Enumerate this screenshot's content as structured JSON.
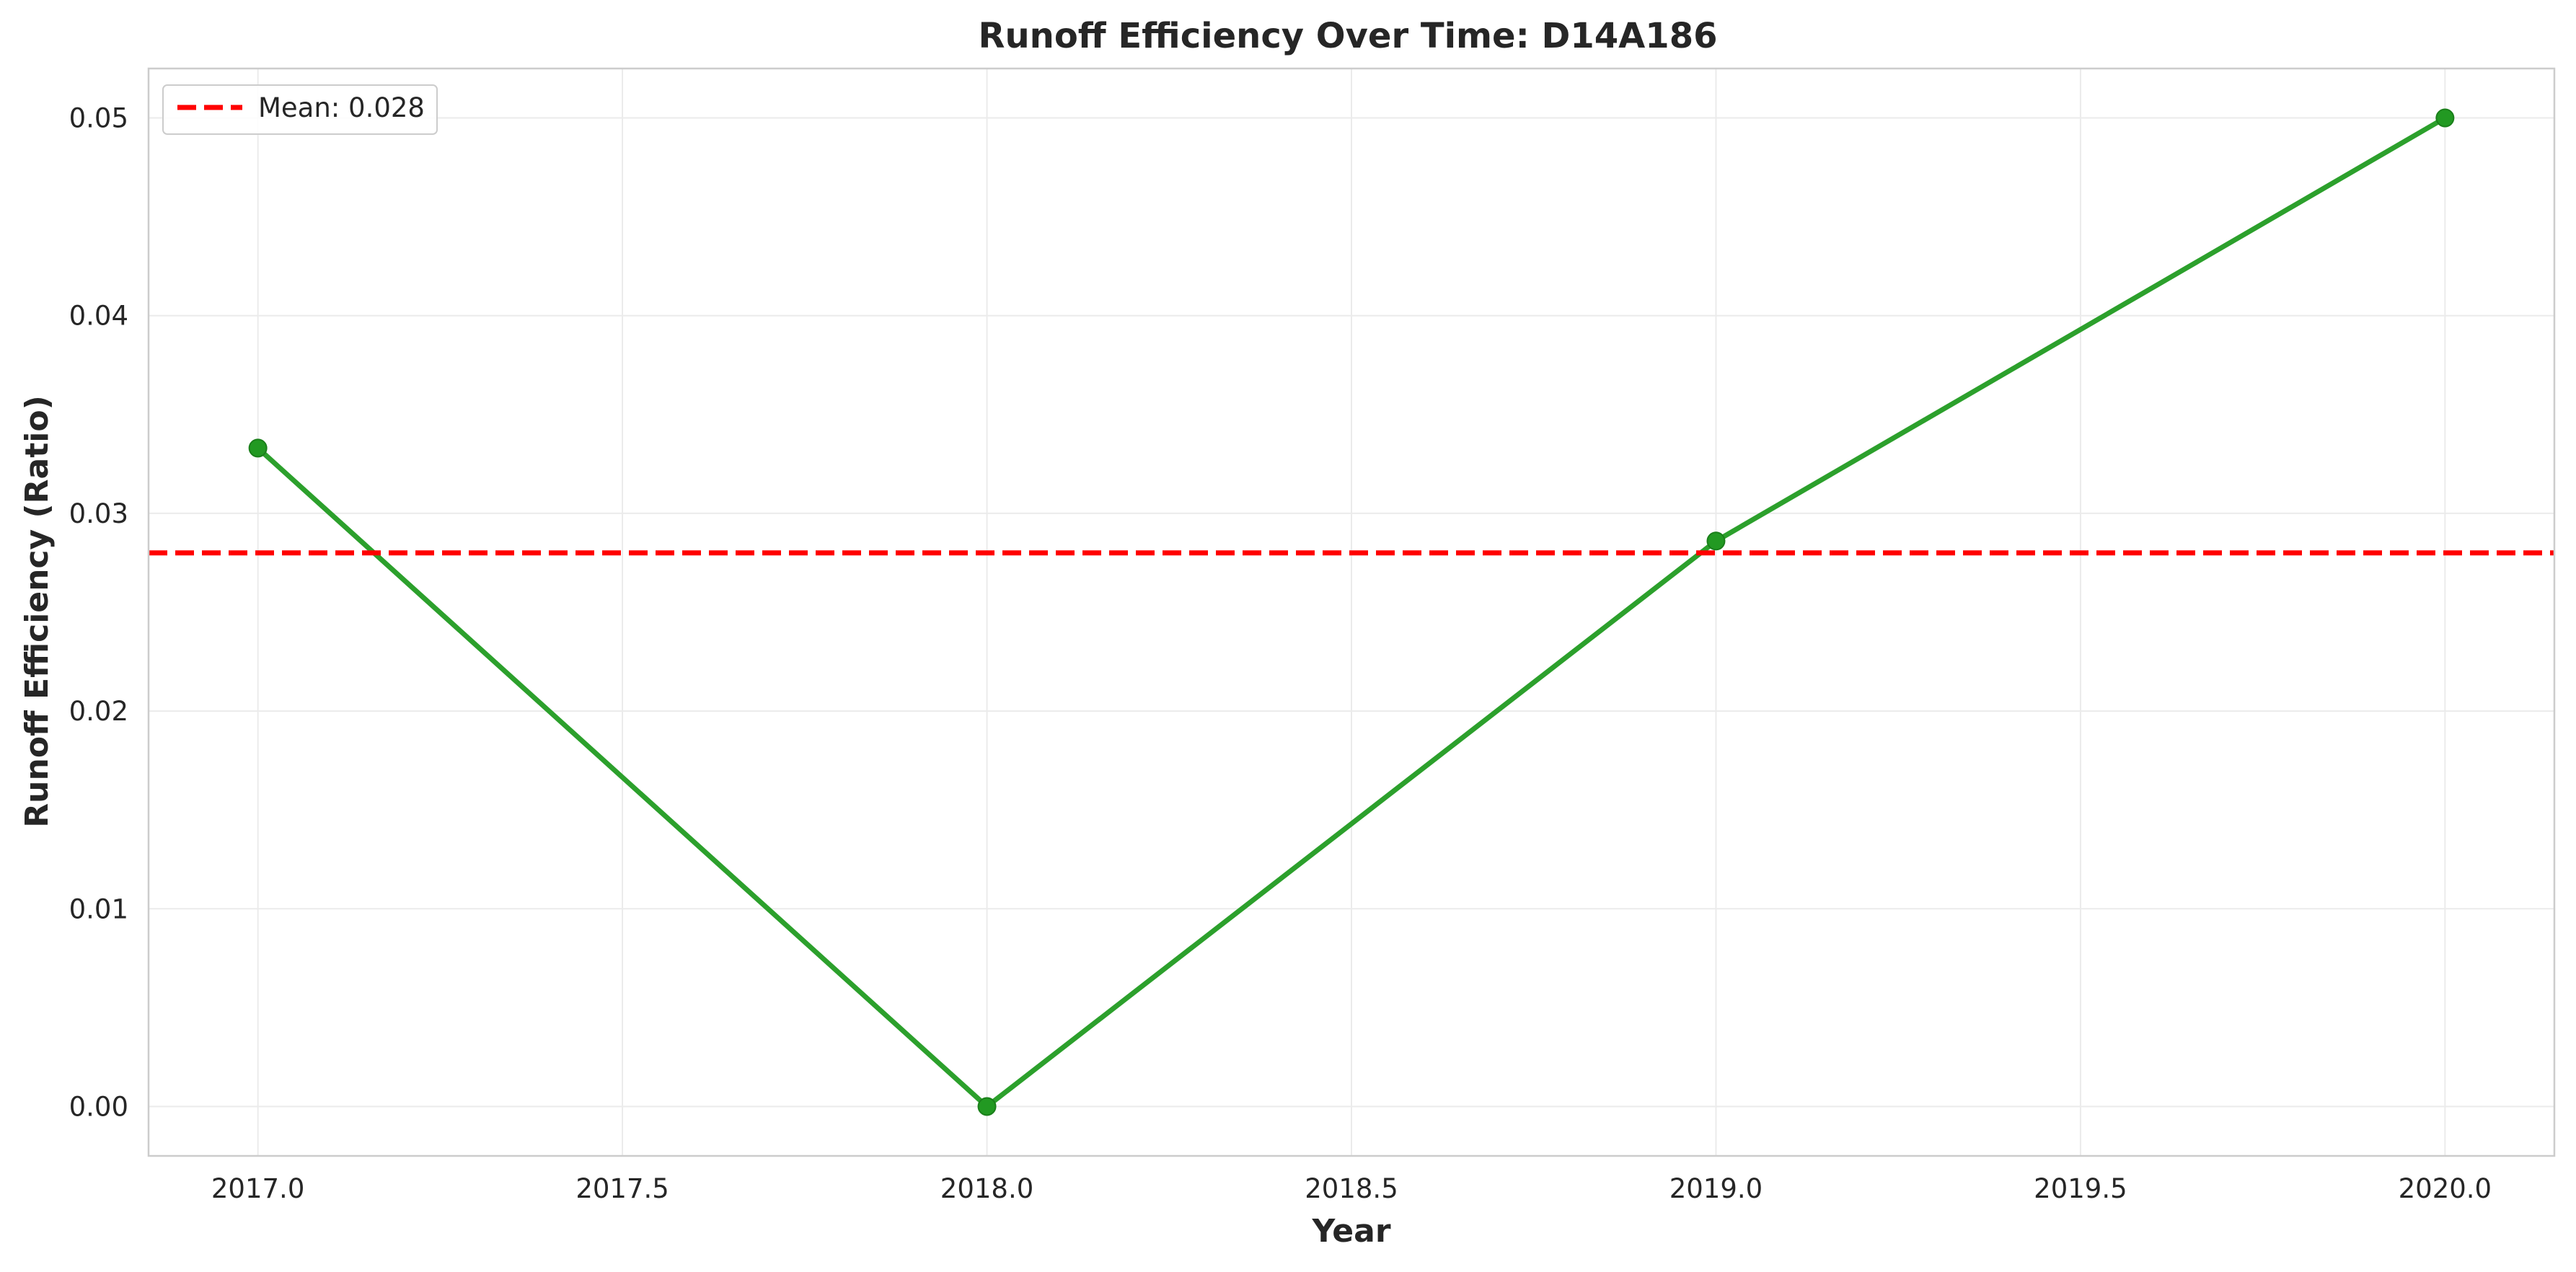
{
  "chart_data": {
    "type": "line",
    "title": "Runoff Efficiency Over Time: D14A186",
    "xlabel": "Year",
    "ylabel": "Runoff Efficiency (Ratio)",
    "xlim": [
      2016.85,
      2020.15
    ],
    "ylim": [
      -0.0025,
      0.0525
    ],
    "xticks": [
      2017.0,
      2017.5,
      2018.0,
      2018.5,
      2019.0,
      2019.5,
      2020.0
    ],
    "xtick_labels": [
      "2017.0",
      "2017.5",
      "2018.0",
      "2018.5",
      "2019.0",
      "2019.5",
      "2020.0"
    ],
    "yticks": [
      0.0,
      0.01,
      0.02,
      0.03,
      0.04,
      0.05
    ],
    "ytick_labels": [
      "0.00",
      "0.01",
      "0.02",
      "0.03",
      "0.04",
      "0.05"
    ],
    "grid": true,
    "legend_position": "top-left",
    "series": [
      {
        "x": [
          2017,
          2018,
          2019,
          2020
        ],
        "y": [
          0.0333,
          0.0,
          0.0286,
          0.05
        ],
        "color": "#2ca02c",
        "marker": "circle"
      }
    ],
    "reference_lines": [
      {
        "name": "Mean: 0.028",
        "y": 0.028,
        "color": "#ff0000",
        "style": "dashed"
      }
    ]
  }
}
